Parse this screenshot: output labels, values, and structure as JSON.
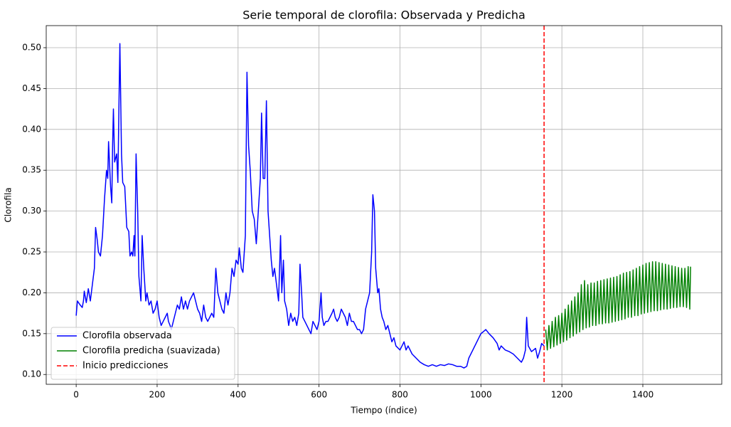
{
  "chart_data": {
    "type": "line",
    "title": "Serie temporal de clorofila: Observada y Predicha",
    "xlabel": "Tiempo (índice)",
    "ylabel": "Clorofila",
    "xlim": [
      -74,
      1595
    ],
    "ylim": [
      0.088,
      0.527
    ],
    "xticks": [
      0,
      200,
      400,
      600,
      800,
      1000,
      1200,
      1400
    ],
    "yticks": [
      {
        "value": 0.1,
        "label": "0.10"
      },
      0.15,
      {
        "value": 0.2,
        "label": "0.20"
      },
      0.25,
      {
        "value": 0.3,
        "label": "0.30"
      },
      0.35,
      {
        "value": 0.4,
        "label": "0.40"
      },
      0.45,
      {
        "value": 0.5,
        "label": "0.50"
      }
    ],
    "grid": true,
    "legend": "lower left",
    "series": [
      {
        "name": "Clorofila observada",
        "color": "#0000ff",
        "x": [
          0,
          3,
          10,
          15,
          18,
          20,
          25,
          30,
          35,
          40,
          45,
          48,
          52,
          55,
          60,
          65,
          70,
          75,
          78,
          80,
          85,
          88,
          90,
          92,
          95,
          100,
          103,
          106,
          108,
          112,
          115,
          120,
          125,
          130,
          133,
          137,
          140,
          143,
          145,
          148,
          152,
          155,
          160,
          163,
          167,
          172,
          175,
          180,
          185,
          190,
          195,
          200,
          205,
          210,
          215,
          220,
          225,
          228,
          232,
          235,
          240,
          245,
          250,
          255,
          260,
          265,
          270,
          275,
          280,
          285,
          290,
          295,
          300,
          305,
          310,
          315,
          320,
          325,
          330,
          335,
          340,
          345,
          350,
          355,
          360,
          365,
          370,
          375,
          380,
          385,
          390,
          395,
          400,
          403,
          408,
          412,
          418,
          422,
          426,
          430,
          435,
          440,
          445,
          450,
          455,
          458,
          462,
          466,
          470,
          474,
          478,
          482,
          486,
          490,
          495,
          500,
          505,
          508,
          512,
          515,
          520,
          525,
          530,
          535,
          540,
          545,
          550,
          553,
          557,
          560,
          565,
          570,
          575,
          580,
          585,
          590,
          595,
          600,
          605,
          608,
          612,
          617,
          622,
          627,
          632,
          636,
          640,
          645,
          650,
          655,
          660,
          665,
          670,
          675,
          680,
          685,
          690,
          695,
          700,
          705,
          710,
          715,
          720,
          725,
          730,
          733,
          737,
          740,
          745,
          748,
          752,
          756,
          760,
          765,
          770,
          775,
          780,
          785,
          790,
          800,
          810,
          815,
          820,
          830,
          840,
          850,
          860,
          870,
          880,
          890,
          900,
          910,
          920,
          930,
          940,
          950,
          958,
          965,
          970,
          980,
          990,
          1000,
          1005,
          1012,
          1020,
          1030,
          1040,
          1045,
          1050,
          1060,
          1070,
          1080,
          1090,
          1100,
          1105,
          1110,
          1113,
          1117,
          1125,
          1135,
          1140,
          1145,
          1150,
          1156
        ],
        "values": [
          0.172,
          0.19,
          0.185,
          0.182,
          0.19,
          0.202,
          0.188,
          0.205,
          0.19,
          0.21,
          0.23,
          0.28,
          0.265,
          0.25,
          0.245,
          0.27,
          0.315,
          0.35,
          0.34,
          0.385,
          0.33,
          0.31,
          0.38,
          0.425,
          0.36,
          0.37,
          0.335,
          0.44,
          0.505,
          0.37,
          0.335,
          0.33,
          0.28,
          0.275,
          0.245,
          0.25,
          0.245,
          0.27,
          0.245,
          0.37,
          0.3,
          0.22,
          0.19,
          0.27,
          0.23,
          0.19,
          0.2,
          0.185,
          0.19,
          0.175,
          0.18,
          0.19,
          0.17,
          0.16,
          0.165,
          0.17,
          0.175,
          0.165,
          0.16,
          0.155,
          0.165,
          0.175,
          0.185,
          0.18,
          0.195,
          0.18,
          0.19,
          0.18,
          0.19,
          0.195,
          0.2,
          0.19,
          0.18,
          0.175,
          0.165,
          0.185,
          0.17,
          0.165,
          0.17,
          0.175,
          0.17,
          0.23,
          0.2,
          0.19,
          0.18,
          0.175,
          0.2,
          0.185,
          0.2,
          0.23,
          0.22,
          0.24,
          0.235,
          0.255,
          0.23,
          0.225,
          0.27,
          0.47,
          0.38,
          0.35,
          0.3,
          0.29,
          0.26,
          0.3,
          0.34,
          0.42,
          0.34,
          0.34,
          0.435,
          0.3,
          0.27,
          0.24,
          0.22,
          0.23,
          0.21,
          0.19,
          0.27,
          0.2,
          0.24,
          0.19,
          0.18,
          0.16,
          0.175,
          0.165,
          0.17,
          0.16,
          0.175,
          0.235,
          0.2,
          0.17,
          0.165,
          0.16,
          0.155,
          0.15,
          0.165,
          0.16,
          0.155,
          0.165,
          0.2,
          0.17,
          0.16,
          0.165,
          0.165,
          0.17,
          0.175,
          0.18,
          0.17,
          0.165,
          0.17,
          0.18,
          0.175,
          0.17,
          0.16,
          0.175,
          0.165,
          0.165,
          0.16,
          0.155,
          0.155,
          0.15,
          0.155,
          0.18,
          0.19,
          0.2,
          0.25,
          0.32,
          0.3,
          0.23,
          0.2,
          0.205,
          0.18,
          0.17,
          0.165,
          0.155,
          0.16,
          0.15,
          0.14,
          0.145,
          0.135,
          0.13,
          0.14,
          0.13,
          0.135,
          0.125,
          0.12,
          0.115,
          0.112,
          0.11,
          0.112,
          0.11,
          0.112,
          0.111,
          0.113,
          0.112,
          0.11,
          0.11,
          0.108,
          0.11,
          0.12,
          0.13,
          0.14,
          0.15,
          0.152,
          0.155,
          0.15,
          0.145,
          0.138,
          0.13,
          0.135,
          0.13,
          0.128,
          0.125,
          0.12,
          0.115,
          0.12,
          0.13,
          0.17,
          0.135,
          0.128,
          0.132,
          0.12,
          0.128,
          0.138,
          0.135
        ]
      },
      {
        "name": "Clorofila predicha (suavizada)",
        "color": "#008000",
        "x": [
          1160,
          1164,
          1168,
          1172,
          1176,
          1180,
          1184,
          1188,
          1192,
          1196,
          1200,
          1204,
          1208,
          1212,
          1216,
          1220,
          1224,
          1228,
          1232,
          1236,
          1240,
          1244,
          1248,
          1252,
          1256,
          1260,
          1264,
          1268,
          1272,
          1276,
          1280,
          1284,
          1288,
          1292,
          1296,
          1300,
          1304,
          1308,
          1312,
          1316,
          1320,
          1324,
          1328,
          1332,
          1336,
          1340,
          1344,
          1348,
          1352,
          1356,
          1360,
          1364,
          1368,
          1372,
          1376,
          1380,
          1384,
          1388,
          1392,
          1396,
          1400,
          1404,
          1408,
          1412,
          1416,
          1420,
          1424,
          1428,
          1432,
          1436,
          1440,
          1444,
          1448,
          1452,
          1456,
          1460,
          1464,
          1468,
          1472,
          1476,
          1480,
          1484,
          1488,
          1492,
          1496,
          1500,
          1504,
          1508,
          1512,
          1516,
          1518
        ],
        "values": [
          0.155,
          0.13,
          0.16,
          0.132,
          0.165,
          0.134,
          0.17,
          0.136,
          0.172,
          0.138,
          0.175,
          0.14,
          0.18,
          0.142,
          0.185,
          0.145,
          0.19,
          0.147,
          0.195,
          0.15,
          0.2,
          0.152,
          0.21,
          0.155,
          0.215,
          0.157,
          0.21,
          0.158,
          0.212,
          0.16,
          0.212,
          0.16,
          0.214,
          0.162,
          0.215,
          0.162,
          0.216,
          0.163,
          0.217,
          0.163,
          0.218,
          0.164,
          0.219,
          0.165,
          0.22,
          0.166,
          0.222,
          0.167,
          0.224,
          0.168,
          0.225,
          0.17,
          0.226,
          0.17,
          0.228,
          0.172,
          0.23,
          0.172,
          0.232,
          0.174,
          0.234,
          0.175,
          0.236,
          0.176,
          0.237,
          0.177,
          0.238,
          0.178,
          0.238,
          0.178,
          0.237,
          0.179,
          0.236,
          0.18,
          0.235,
          0.18,
          0.234,
          0.181,
          0.233,
          0.182,
          0.232,
          0.182,
          0.231,
          0.183,
          0.23,
          0.183,
          0.23,
          0.182,
          0.232,
          0.18,
          0.232
        ]
      }
    ],
    "vlines": [
      {
        "name": "Inicio predicciones",
        "color": "#ff0000",
        "x": 1156
      }
    ]
  }
}
